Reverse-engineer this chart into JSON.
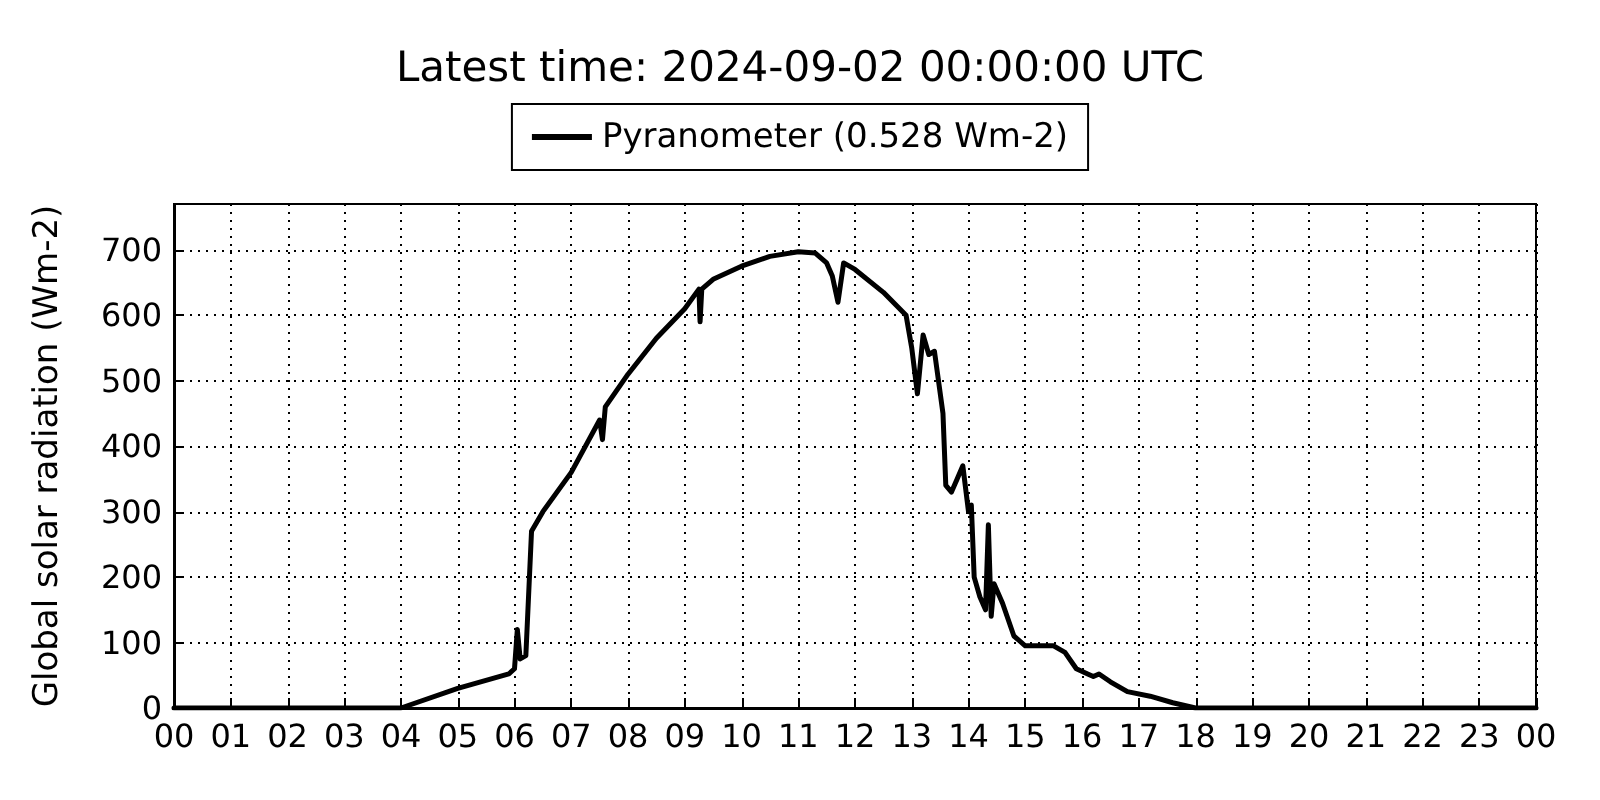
{
  "chart_data": {
    "type": "line",
    "title": "Latest time: 2024-09-02 00:00:00 UTC",
    "ylabel": "Global solar radiation (Wm-2)",
    "x": [
      0,
      4.0,
      5.0,
      5.9,
      6.0,
      6.05,
      6.1,
      6.2,
      6.3,
      6.5,
      7.0,
      7.5,
      7.55,
      7.6,
      8.0,
      8.5,
      9.0,
      9.25,
      9.27,
      9.3,
      9.5,
      10.0,
      10.5,
      11.0,
      11.3,
      11.5,
      11.6,
      11.7,
      11.8,
      12.0,
      12.5,
      12.9,
      13.0,
      13.1,
      13.2,
      13.3,
      13.4,
      13.55,
      13.6,
      13.7,
      13.8,
      13.9,
      14.0,
      14.05,
      14.1,
      14.2,
      14.3,
      14.35,
      14.4,
      14.45,
      14.6,
      14.8,
      15.0,
      15.2,
      15.5,
      15.7,
      15.9,
      16.1,
      16.2,
      16.3,
      16.5,
      16.8,
      17.2,
      17.6,
      18.0,
      24
    ],
    "series": [
      {
        "name": "Pyranometer (0.528 Wm-2)",
        "color": "#000000",
        "values": [
          0,
          0,
          30,
          52,
          60,
          120,
          75,
          80,
          270,
          300,
          360,
          440,
          410,
          460,
          510,
          565,
          610,
          640,
          590,
          640,
          655,
          675,
          690,
          697,
          695,
          680,
          660,
          620,
          680,
          670,
          635,
          600,
          550,
          480,
          570,
          540,
          545,
          450,
          340,
          330,
          350,
          370,
          300,
          310,
          200,
          170,
          150,
          280,
          140,
          190,
          160,
          110,
          95,
          95,
          95,
          85,
          60,
          52,
          48,
          52,
          40,
          25,
          18,
          8,
          0,
          0
        ]
      }
    ],
    "xlim": [
      0,
      24
    ],
    "xticks": [
      {
        "value": 0,
        "label": "00"
      },
      {
        "value": 1,
        "label": "01"
      },
      {
        "value": 2,
        "label": "02"
      },
      {
        "value": 3,
        "label": "03"
      },
      {
        "value": 4,
        "label": "04"
      },
      {
        "value": 5,
        "label": "05"
      },
      {
        "value": 6,
        "label": "06"
      },
      {
        "value": 7,
        "label": "07"
      },
      {
        "value": 8,
        "label": "08"
      },
      {
        "value": 9,
        "label": "09"
      },
      {
        "value": 10,
        "label": "10"
      },
      {
        "value": 11,
        "label": "11"
      },
      {
        "value": 12,
        "label": "12"
      },
      {
        "value": 13,
        "label": "13"
      },
      {
        "value": 14,
        "label": "14"
      },
      {
        "value": 15,
        "label": "15"
      },
      {
        "value": 16,
        "label": "16"
      },
      {
        "value": 17,
        "label": "17"
      },
      {
        "value": 18,
        "label": "18"
      },
      {
        "value": 19,
        "label": "19"
      },
      {
        "value": 20,
        "label": "20"
      },
      {
        "value": 21,
        "label": "21"
      },
      {
        "value": 22,
        "label": "22"
      },
      {
        "value": 23,
        "label": "23"
      },
      {
        "value": 24,
        "label": "00"
      }
    ],
    "ylim": [
      0,
      770
    ],
    "yticks": [
      0,
      100,
      200,
      300,
      400,
      500,
      600,
      700
    ],
    "grid": true,
    "legend": "top",
    "marker": "none",
    "line_style": "solid"
  }
}
